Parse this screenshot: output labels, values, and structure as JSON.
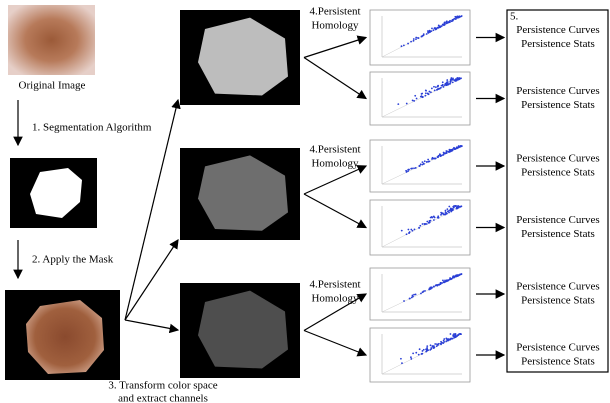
{
  "steps": {
    "original_image": "Original Image",
    "segmentation": "1. Segmentation Algorithm",
    "mask": "2. Apply the Mask",
    "transform": [
      "3. Transform color space",
      "and extract channels"
    ]
  },
  "homology_labels": [
    [
      "4.Persistent",
      "Homology"
    ],
    [
      "4.Persistent",
      "Homology"
    ],
    [
      "4.Persistent",
      "Homology"
    ]
  ],
  "output_number": "5.",
  "outputs": [
    [
      "Persistence Curves",
      "Persistence Stats"
    ],
    [
      "Persistence Curves",
      "Persistence Stats"
    ],
    [
      "Persistence Curves",
      "Persistence Stats"
    ],
    [
      "Persistence Curves",
      "Persistence Stats"
    ],
    [
      "Persistence Curves",
      "Persistence Stats"
    ],
    [
      "Persistence Curves",
      "Persistence Stats"
    ]
  ]
}
